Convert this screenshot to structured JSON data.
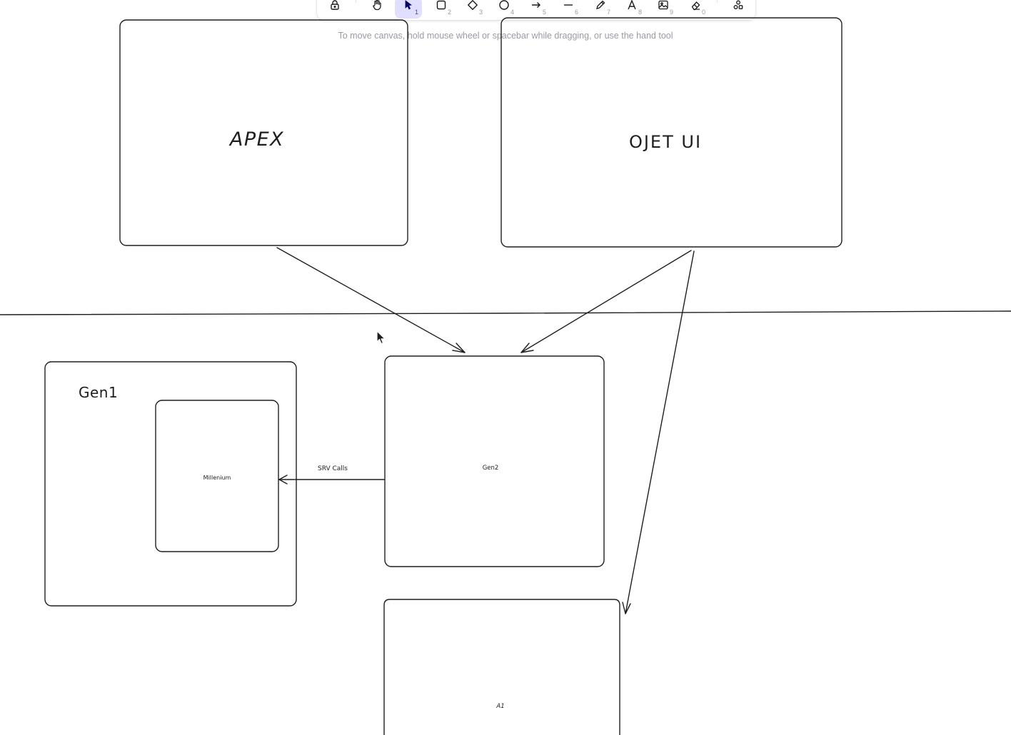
{
  "toolbar": {
    "tools": [
      {
        "name": "lock",
        "key": ""
      },
      {
        "name": "hand",
        "key": ""
      },
      {
        "name": "selection",
        "key": "1",
        "active": true
      },
      {
        "name": "rectangle",
        "key": "2"
      },
      {
        "name": "diamond",
        "key": "3"
      },
      {
        "name": "ellipse",
        "key": "4"
      },
      {
        "name": "arrow",
        "key": "5"
      },
      {
        "name": "line",
        "key": "6"
      },
      {
        "name": "draw",
        "key": "7"
      },
      {
        "name": "text",
        "key": "8"
      },
      {
        "name": "image",
        "key": "9"
      },
      {
        "name": "eraser",
        "key": "0"
      },
      {
        "name": "more-tools",
        "key": ""
      }
    ],
    "accent_color": "#e0dfff"
  },
  "hint": "To move canvas, hold mouse wheel or spacebar while dragging, or use the hand tool",
  "canvas": {
    "stroke_color": "#1e1e1e",
    "labels": {
      "apex": "APEX",
      "ojet": "OJET UI",
      "gen1": "Gen1",
      "millenium": "Millenium",
      "gen2": "Gen2",
      "srv_calls": "SRV Calls",
      "a1": "A1"
    }
  }
}
